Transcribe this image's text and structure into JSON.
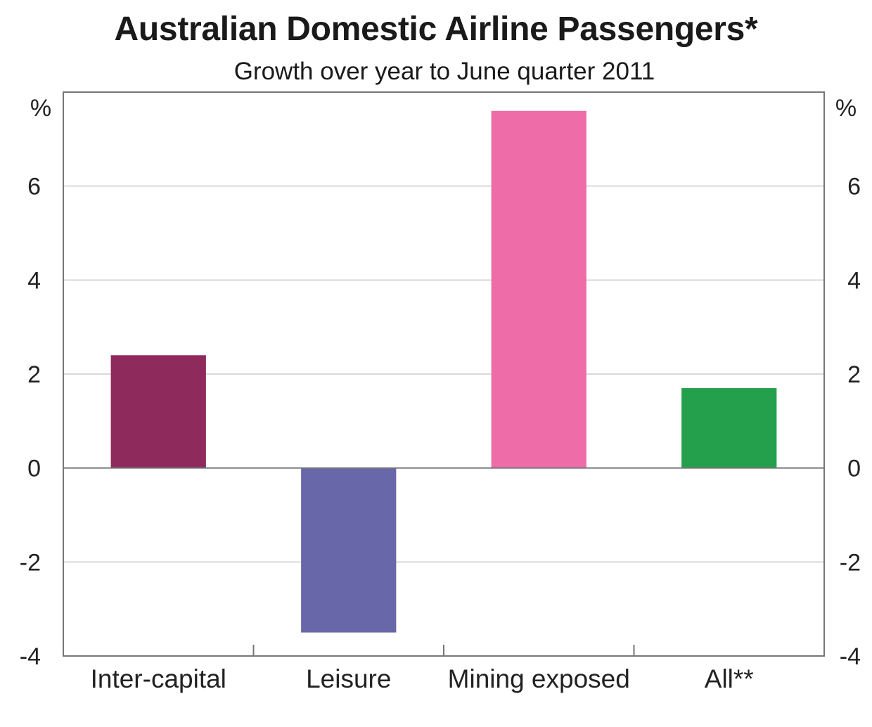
{
  "chart_data": {
    "type": "bar",
    "title": "Australian Domestic Airline Passengers*",
    "subtitle": "Growth over year to June quarter 2011",
    "categories": [
      "Inter-capital",
      "Leisure",
      "Mining exposed",
      "All**"
    ],
    "values": [
      2.4,
      -3.5,
      7.6,
      1.7
    ],
    "colors": [
      "#8f2a5c",
      "#6767a9",
      "#ee6ca8",
      "#24a04c"
    ],
    "ylabel_left": "%",
    "ylabel_right": "%",
    "ylim": [
      -4,
      8
    ],
    "yticks": [
      -4,
      -2,
      0,
      2,
      4,
      6
    ],
    "grid": true
  }
}
